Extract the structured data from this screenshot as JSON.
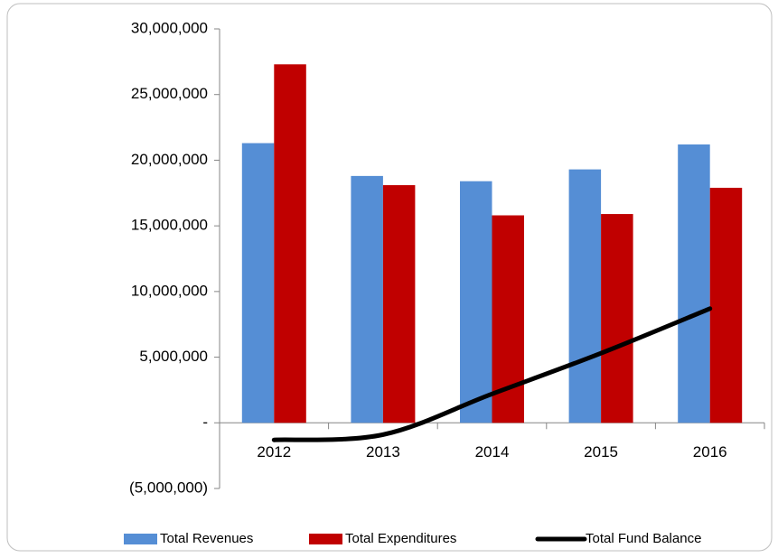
{
  "chart_data": {
    "type": "bar-line",
    "categories": [
      "2012",
      "2013",
      "2014",
      "2015",
      "2016"
    ],
    "series": [
      {
        "name": "Total Revenues",
        "type": "bar",
        "color": "#558ed5",
        "values": [
          21300000,
          18800000,
          18400000,
          19300000,
          21200000
        ]
      },
      {
        "name": "Total Expenditures",
        "type": "bar",
        "color": "#c00000",
        "values": [
          27300000,
          18100000,
          15800000,
          15900000,
          17900000
        ]
      },
      {
        "name": "Total Fund Balance",
        "type": "line",
        "color": "#000000",
        "values": [
          -1300000,
          -900000,
          2200000,
          5300000,
          8700000
        ]
      }
    ],
    "ylim": [
      -5000000,
      30000000
    ],
    "yticks": [
      {
        "value": -5000000,
        "label": "(5,000,000)"
      },
      {
        "value": 0,
        "label": "-"
      },
      {
        "value": 5000000,
        "label": "5,000,000"
      },
      {
        "value": 10000000,
        "label": "10,000,000"
      },
      {
        "value": 15000000,
        "label": "15,000,000"
      },
      {
        "value": 20000000,
        "label": "20,000,000"
      },
      {
        "value": 25000000,
        "label": "25,000,000"
      },
      {
        "value": 30000000,
        "label": "30,000,000"
      }
    ],
    "grid": false,
    "legend": "bottom"
  }
}
